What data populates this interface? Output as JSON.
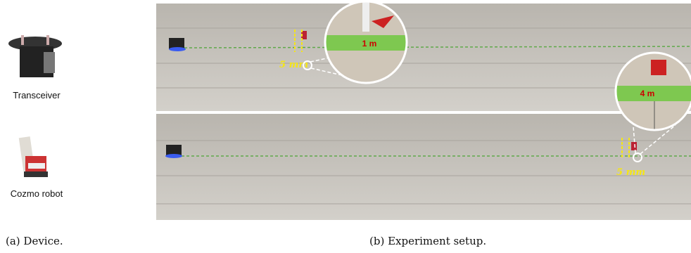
{
  "panel_a": {
    "devices": [
      {
        "label": "Transceiver"
      },
      {
        "label": "Cozmo robot"
      }
    ],
    "caption": "(a) Device."
  },
  "panel_b": {
    "photos": [
      {
        "distance_label": "1 m",
        "offset_label": "5 mm"
      },
      {
        "distance_label": "4 m",
        "offset_label": "5 mm"
      }
    ],
    "caption": "(b) Experiment setup."
  }
}
